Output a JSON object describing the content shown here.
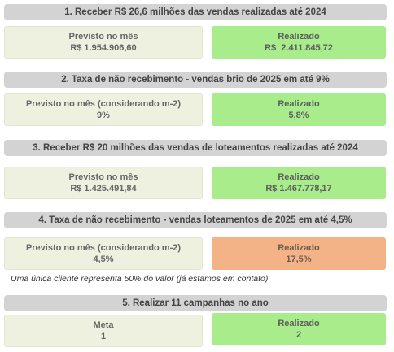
{
  "kpis": [
    {
      "title": "1. Receber R$ 26,6 milhões das vendas realizadas até 2024",
      "planned_label": "Previsto no mês",
      "planned_value": "R$ 1.954.906,60",
      "actual_label": "Realizado",
      "actual_value": "R$  2.411.845,72",
      "status_color": "#a8ec8c"
    },
    {
      "title": "2. Taxa de não recebimento - vendas brio de 2025 em até 9%",
      "planned_label": "Previsto no mês (considerando m-2)",
      "planned_value": "9%",
      "actual_label": "Realizado",
      "actual_value": "5,8%",
      "status_color": "#a8ec8c"
    },
    {
      "title": "3. Receber R$ 20 milhões das vendas de loteamentos realizadas até 2024",
      "planned_label": "Previsto no mês",
      "planned_value": "R$ 1.425.491,84",
      "actual_label": "Realizado",
      "actual_value": "R$ 1.467.778,17",
      "status_color": "#a8ec8c"
    },
    {
      "title": "4. Taxa de não recebimento - vendas loteamentos de 2025 em até 4,5%",
      "planned_label": "Previsto no mês (considerando m-2)",
      "planned_value": "4,5%",
      "actual_label": "Realizado",
      "actual_value": "17,5%",
      "status_color": "#f3b386",
      "note": "Uma única cliente representa 50% do valor (já estamos em contato)"
    },
    {
      "title": "5. Realizar 11 campanhas no ano",
      "planned_label": "Meta",
      "planned_value": "1",
      "actual_label": "Realizado",
      "actual_value": "2",
      "status_color": "#a8ec8c"
    }
  ]
}
